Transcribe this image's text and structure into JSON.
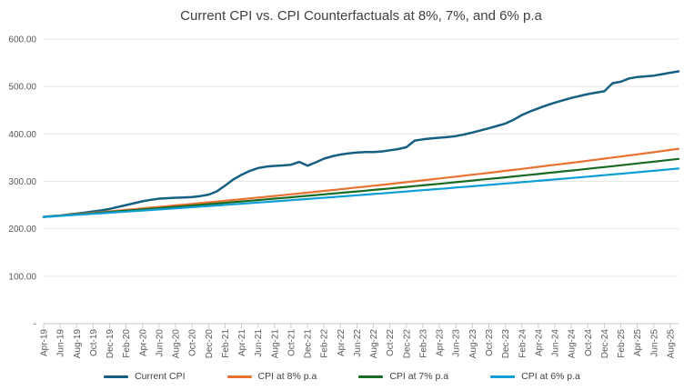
{
  "title": "Current CPI vs. CPI Counterfactuals at 8%, 7%, and 6% p.a",
  "chart_data": {
    "type": "line",
    "title": "Current CPI vs. CPI Counterfactuals at 8%, 7%, and 6% p.a",
    "grid": true,
    "legend_position": "bottom",
    "x_categories": [
      "Apr-19",
      "May-19",
      "Jun-19",
      "Jul-19",
      "Aug-19",
      "Sep-19",
      "Oct-19",
      "Nov-19",
      "Dec-19",
      "Jan-20",
      "Feb-20",
      "Mar-20",
      "Apr-20",
      "May-20",
      "Jun-20",
      "Jul-20",
      "Aug-20",
      "Sep-20",
      "Oct-20",
      "Nov-20",
      "Dec-20",
      "Jan-21",
      "Feb-21",
      "Mar-21",
      "Apr-21",
      "May-21",
      "Jun-21",
      "Jul-21",
      "Aug-21",
      "Sep-21",
      "Oct-21",
      "Nov-21",
      "Dec-21",
      "Jan-22",
      "Feb-22",
      "Mar-22",
      "Apr-22",
      "May-22",
      "Jun-22",
      "Jul-22",
      "Aug-22",
      "Sep-22",
      "Oct-22",
      "Nov-22",
      "Dec-22",
      "Jan-23",
      "Feb-23",
      "Mar-23",
      "Apr-23",
      "May-23",
      "Jun-23",
      "Jul-23",
      "Aug-23",
      "Sep-23",
      "Oct-23",
      "Nov-23",
      "Dec-23",
      "Jan-24",
      "Feb-24",
      "Mar-24",
      "Apr-24",
      "May-24",
      "Jun-24",
      "Jul-24",
      "Aug-24",
      "Sep-24",
      "Oct-24",
      "Nov-24",
      "Dec-24",
      "Jan-25",
      "Feb-25",
      "Mar-25",
      "Apr-25",
      "May-25",
      "Jun-25",
      "Jul-25",
      "Aug-25",
      "Sep-25"
    ],
    "x_tick_every": 2,
    "y_axis": {
      "min": 0,
      "max": 600,
      "step": 100,
      "tick_labels": [
        "-",
        "100.00",
        "200.00",
        "300.00",
        "400.00",
        "500.00",
        "600.00"
      ]
    },
    "series": [
      {
        "name": "Current CPI",
        "color": "#156082",
        "width": 2.5,
        "values": [
          225.0,
          226.5,
          228.0,
          230.0,
          232.0,
          234.0,
          236.5,
          239.0,
          242.0,
          246.0,
          250.0,
          254.0,
          258.0,
          261.0,
          263.5,
          264.5,
          265.5,
          266.0,
          267.0,
          269.0,
          272.0,
          279.0,
          291.0,
          304.0,
          314.0,
          322.0,
          328.0,
          331.0,
          332.5,
          333.5,
          335.0,
          341.0,
          333.0,
          340.0,
          348.0,
          353.0,
          356.5,
          359.0,
          361.0,
          362.0,
          362.0,
          363.0,
          365.5,
          368.0,
          372.0,
          386.0,
          388.5,
          390.5,
          392.0,
          393.5,
          395.5,
          399.0,
          403.0,
          407.5,
          412.0,
          417.0,
          422.0,
          430.0,
          440.0,
          447.5,
          454.0,
          460.5,
          466.0,
          471.0,
          476.0,
          480.0,
          484.0,
          487.0,
          490.0,
          507.0,
          510.0,
          517.0,
          520.0,
          521.5,
          523.0,
          526.0,
          529.0,
          532.0
        ]
      },
      {
        "name": "CPI at 8% p.a",
        "color": "#E97132",
        "width": 2.2,
        "values": [
          225.0,
          226.4,
          227.9,
          229.4,
          230.8,
          232.3,
          233.8,
          235.3,
          236.8,
          238.3,
          239.9,
          241.4,
          243.0,
          244.6,
          246.1,
          247.7,
          249.3,
          250.9,
          252.5,
          254.1,
          255.8,
          257.4,
          259.1,
          260.7,
          262.4,
          264.1,
          265.8,
          267.5,
          269.2,
          270.9,
          272.7,
          274.4,
          276.2,
          278.0,
          279.8,
          281.6,
          283.4,
          285.2,
          287.1,
          288.9,
          290.8,
          292.6,
          294.5,
          296.4,
          298.3,
          300.2,
          302.2,
          304.1,
          306.1,
          308.0,
          310.0,
          312.0,
          314.0,
          316.0,
          318.1,
          320.1,
          322.2,
          324.2,
          326.3,
          328.4,
          330.6,
          332.7,
          334.8,
          337.0,
          339.1,
          341.3,
          343.5,
          345.7,
          348.0,
          350.2,
          352.4,
          354.7,
          357.0,
          359.3,
          361.6,
          363.9,
          366.3,
          368.6
        ]
      },
      {
        "name": "CPI at 7% p.a",
        "color": "#196B24",
        "width": 2.2,
        "values": [
          225.0,
          226.3,
          227.5,
          228.8,
          230.1,
          231.4,
          232.7,
          234.0,
          235.4,
          236.7,
          238.0,
          239.4,
          240.8,
          242.1,
          243.5,
          244.9,
          246.3,
          247.6,
          249.0,
          250.5,
          251.9,
          253.3,
          254.7,
          256.2,
          257.6,
          259.1,
          260.5,
          262.0,
          263.5,
          265.0,
          266.5,
          268.0,
          269.5,
          271.0,
          272.5,
          274.1,
          275.6,
          277.2,
          278.8,
          280.3,
          281.9,
          283.5,
          285.1,
          286.7,
          288.4,
          290.0,
          291.6,
          293.3,
          294.9,
          296.6,
          298.3,
          300.0,
          301.7,
          303.4,
          305.1,
          306.8,
          308.5,
          310.3,
          312.0,
          313.8,
          315.6,
          317.4,
          319.2,
          321.0,
          322.8,
          324.6,
          326.4,
          328.3,
          330.1,
          332.0,
          333.9,
          335.8,
          337.7,
          339.6,
          341.5,
          343.5,
          345.4,
          347.3
        ]
      },
      {
        "name": "CPI at 6% p.a",
        "color": "#0F9ED5",
        "width": 2.2,
        "values": [
          225.0,
          226.1,
          227.2,
          228.3,
          229.4,
          230.5,
          231.6,
          232.8,
          233.9,
          235.0,
          236.2,
          237.3,
          238.5,
          239.7,
          240.8,
          242.0,
          243.2,
          244.4,
          245.6,
          246.8,
          248.0,
          249.2,
          250.4,
          251.6,
          252.8,
          254.1,
          255.3,
          256.5,
          257.8,
          259.0,
          260.3,
          261.6,
          262.9,
          264.1,
          265.4,
          266.7,
          268.0,
          269.3,
          270.6,
          272.0,
          273.3,
          274.6,
          276.0,
          277.3,
          278.7,
          280.0,
          281.4,
          282.8,
          284.1,
          285.5,
          286.9,
          288.3,
          289.7,
          291.1,
          292.6,
          294.0,
          295.4,
          296.8,
          298.3,
          299.7,
          301.1,
          302.6,
          304.1,
          305.6,
          307.0,
          308.5,
          310.0,
          311.5,
          313.1,
          314.6,
          316.1,
          317.6,
          319.2,
          320.8,
          322.3,
          323.9,
          325.5,
          327.0
        ]
      }
    ]
  },
  "colors": {
    "title_text": "#404040",
    "axis_text": "#595959",
    "gridline": "#e6e6e6",
    "axis_line": "#c9c9c9",
    "background": "#ffffff"
  }
}
